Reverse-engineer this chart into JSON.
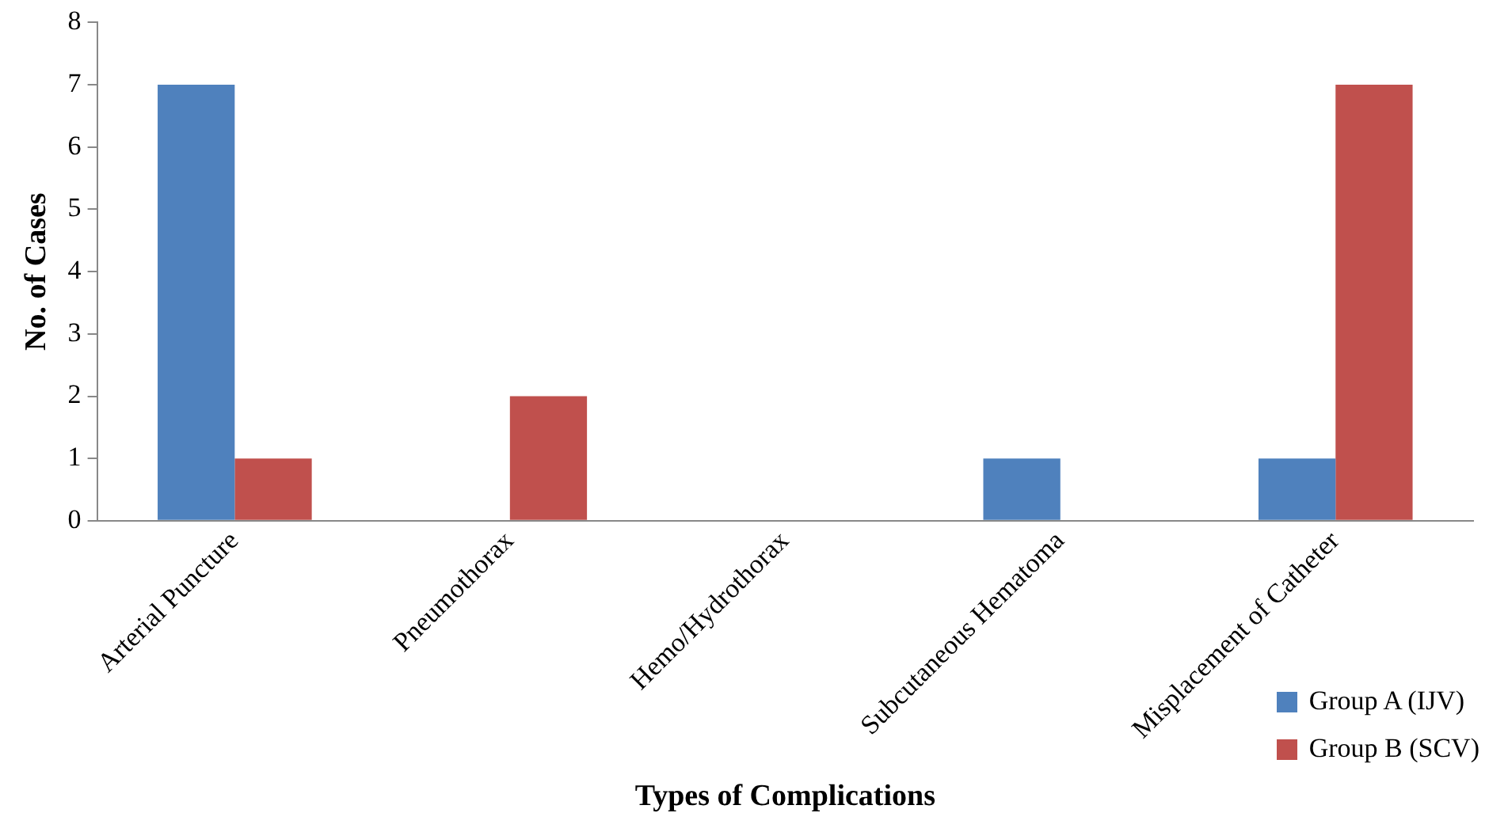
{
  "chart_data": {
    "type": "bar",
    "xlabel": "Types of Complications",
    "ylabel": "No. of Cases",
    "categories": [
      "Arterial Puncture",
      "Pneumothorax",
      "Hemo/Hydrothorax",
      "Subcutaneous Hematoma",
      "Misplacement of Catheter"
    ],
    "series": [
      {
        "name": "Group A (IJV)",
        "color": "#4f81bd",
        "values": [
          7,
          0,
          0,
          1,
          1
        ]
      },
      {
        "name": "Group B (SCV)",
        "color": "#c0504d",
        "values": [
          1,
          2,
          0,
          0,
          7
        ]
      }
    ],
    "ylim": [
      0,
      8
    ],
    "yticks": [
      0,
      1,
      2,
      3,
      4,
      5,
      6,
      7,
      8
    ],
    "grid": false,
    "legend": "bottom right"
  }
}
